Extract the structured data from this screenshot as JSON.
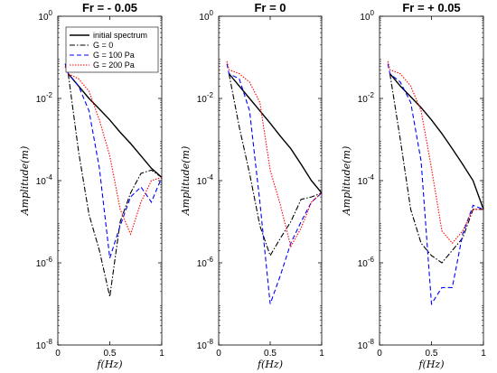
{
  "chart_data": [
    {
      "type": "line",
      "title": "Fr = - 0.05",
      "xlabel": "f(Hz)",
      "ylabel": "Amplitude(m)",
      "xlim": [
        0,
        1
      ],
      "ylim": [
        1e-08,
        1
      ],
      "yscale": "log",
      "x_ticks": [
        "0",
        "0.5",
        "1"
      ],
      "y_ticks": [
        "10^-8",
        "10^-6",
        "10^-4",
        "10^-2",
        "10^0"
      ],
      "legend": "top",
      "series": [
        {
          "name": "initial spectrum",
          "color": "#000000",
          "dash": "solid",
          "x": [
            0.1,
            0.2,
            0.3,
            0.4,
            0.5,
            0.6,
            0.7,
            0.8,
            0.9,
            1.0
          ],
          "y": [
            0.04,
            0.02,
            0.01,
            0.0055,
            0.003,
            0.0015,
            0.0008,
            0.0004,
            0.0002,
            0.00012
          ]
        },
        {
          "name": "G = 0",
          "color": "#000000",
          "dash": "dashdot",
          "x": [
            0.1,
            0.2,
            0.3,
            0.4,
            0.5,
            0.6,
            0.7,
            0.8,
            0.9,
            1.0
          ],
          "y": [
            0.04,
            0.0005,
            1.5e-05,
            2e-06,
            1.5e-07,
            1e-05,
            5e-05,
            0.00015,
            0.00018,
            0.00012
          ]
        },
        {
          "name": "G = 100 Pa",
          "color": "#0000ff",
          "dash": "dashed",
          "x": [
            0.07,
            0.1,
            0.2,
            0.3,
            0.4,
            0.5,
            0.6,
            0.7,
            0.8,
            0.9,
            1.0
          ],
          "y": [
            0.07,
            0.04,
            0.02,
            0.005,
            0.0002,
            1.3e-06,
            8e-06,
            4e-05,
            7e-05,
            3e-05,
            0.00012
          ]
        },
        {
          "name": "G = 200 Pa",
          "color": "#ff0000",
          "dash": "dotted",
          "x": [
            0.07,
            0.1,
            0.2,
            0.3,
            0.4,
            0.5,
            0.6,
            0.7,
            0.8,
            0.9,
            1.0
          ],
          "y": [
            0.06,
            0.04,
            0.03,
            0.015,
            0.003,
            0.0004,
            2e-05,
            5e-06,
            3e-05,
            0.0001,
            0.00012
          ]
        }
      ]
    },
    {
      "type": "line",
      "title": "Fr = 0",
      "xlabel": "f(Hz)",
      "ylabel": "Amplitude(m)",
      "xlim": [
        0,
        1
      ],
      "ylim": [
        1e-08,
        1
      ],
      "yscale": "log",
      "x_ticks": [
        "0",
        "0.5",
        "1"
      ],
      "y_ticks": [
        "10^-8",
        "10^-6",
        "10^-4",
        "10^-2",
        "10^0"
      ],
      "series": [
        {
          "name": "initial spectrum",
          "color": "#000000",
          "dash": "solid",
          "x": [
            0.1,
            0.2,
            0.3,
            0.4,
            0.5,
            0.6,
            0.7,
            0.8,
            0.9,
            1.0
          ],
          "y": [
            0.04,
            0.02,
            0.01,
            0.005,
            0.0025,
            0.0012,
            0.0006,
            0.00025,
            0.0001,
            5e-05
          ]
        },
        {
          "name": "G = 0",
          "color": "#000000",
          "dash": "dashdot",
          "x": [
            0.1,
            0.2,
            0.3,
            0.4,
            0.5,
            0.6,
            0.7,
            0.8,
            0.9,
            1.0
          ],
          "y": [
            0.04,
            0.002,
            0.00015,
            8e-06,
            1.5e-06,
            4e-06,
            1e-05,
            3.5e-05,
            4e-05,
            5e-05
          ]
        },
        {
          "name": "G = 100 Pa",
          "color": "#0000ff",
          "dash": "dashed",
          "x": [
            0.08,
            0.1,
            0.2,
            0.3,
            0.4,
            0.5,
            0.6,
            0.7,
            0.8,
            0.9,
            1.0
          ],
          "y": [
            0.07,
            0.04,
            0.03,
            0.005,
            3e-05,
            1e-07,
            5e-07,
            3e-06,
            1e-05,
            3e-05,
            5e-05
          ]
        },
        {
          "name": "G = 200 Pa",
          "color": "#ff0000",
          "dash": "dotted",
          "x": [
            0.08,
            0.1,
            0.2,
            0.3,
            0.4,
            0.5,
            0.6,
            0.7,
            0.8,
            0.9,
            1.0
          ],
          "y": [
            0.08,
            0.05,
            0.04,
            0.025,
            0.008,
            0.00018,
            2.5e-05,
            2.5e-06,
            7e-06,
            3e-05,
            5e-05
          ]
        }
      ]
    },
    {
      "type": "line",
      "title": "Fr = + 0.05",
      "xlabel": "f(Hz)",
      "ylabel": "Amplitude(m)",
      "xlim": [
        0,
        1
      ],
      "ylim": [
        1e-08,
        1
      ],
      "yscale": "log",
      "x_ticks": [
        "0",
        "0.5",
        "1"
      ],
      "y_ticks": [
        "10^-8",
        "10^-6",
        "10^-4",
        "10^-2",
        "10^0"
      ],
      "series": [
        {
          "name": "initial spectrum",
          "color": "#000000",
          "dash": "solid",
          "x": [
            0.1,
            0.2,
            0.3,
            0.4,
            0.5,
            0.6,
            0.7,
            0.8,
            0.9,
            1.0
          ],
          "y": [
            0.04,
            0.02,
            0.011,
            0.006,
            0.003,
            0.0014,
            0.0006,
            0.00025,
            0.0001,
            2e-05
          ]
        },
        {
          "name": "G = 0",
          "color": "#000000",
          "dash": "dashdot",
          "x": [
            0.1,
            0.2,
            0.3,
            0.4,
            0.5,
            0.6,
            0.7,
            0.8,
            0.9,
            1.0
          ],
          "y": [
            0.04,
            0.001,
            2e-05,
            3e-06,
            1.5e-06,
            1e-06,
            2e-06,
            4e-06,
            2e-05,
            2e-05
          ]
        },
        {
          "name": "G = 100 Pa",
          "color": "#0000ff",
          "dash": "dashed",
          "x": [
            0.08,
            0.1,
            0.2,
            0.3,
            0.4,
            0.5,
            0.6,
            0.7,
            0.8,
            0.9,
            1.0
          ],
          "y": [
            0.07,
            0.04,
            0.025,
            0.008,
            0.0003,
            1e-07,
            2.5e-07,
            2.5e-07,
            5e-06,
            2.5e-05,
            2e-05
          ]
        },
        {
          "name": "G = 200 Pa",
          "color": "#ff0000",
          "dash": "dotted",
          "x": [
            0.08,
            0.1,
            0.2,
            0.3,
            0.4,
            0.5,
            0.6,
            0.7,
            0.8,
            0.9,
            1.0
          ],
          "y": [
            0.08,
            0.05,
            0.04,
            0.02,
            0.005,
            0.0002,
            6e-06,
            3e-06,
            6e-06,
            2e-05,
            2e-05
          ]
        }
      ]
    }
  ]
}
